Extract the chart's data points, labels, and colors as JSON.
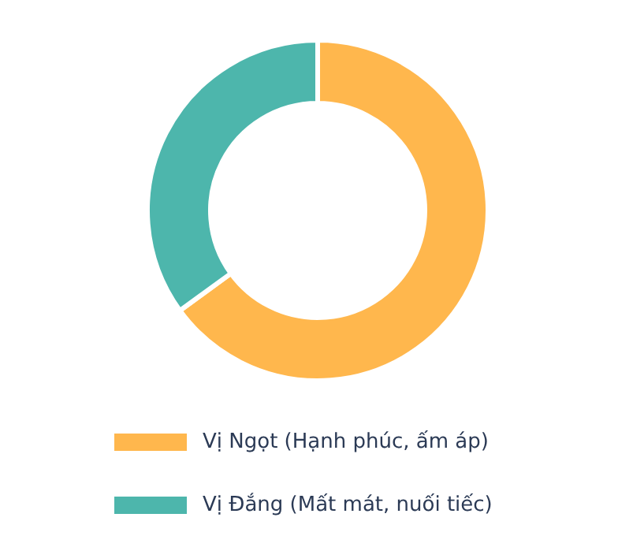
{
  "chart_data": {
    "type": "donut",
    "categories": [
      "Vị Ngọt (Hạnh phúc, ấm áp)",
      "Vị Đắng (Mất mát, nuối tiếc)"
    ],
    "values": [
      65,
      35
    ],
    "colors": [
      "#ffb74d",
      "#4db6ac"
    ],
    "legend": "bottom"
  }
}
